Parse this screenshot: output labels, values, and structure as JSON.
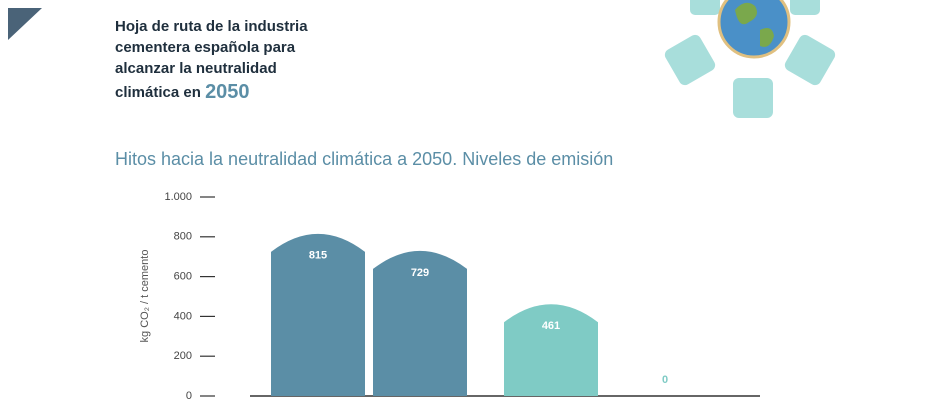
{
  "header": {
    "title_lines": [
      "Hoja de ruta de la industria",
      "cementera española para",
      "alcanzar la neutralidad",
      "climática en"
    ],
    "title_year": "2050"
  },
  "chart_data": {
    "type": "bar",
    "title": "Hitos hacia la neutralidad climática a 2050. Niveles de emisión",
    "ylabel": "kg CO₂ / t cemento",
    "categories": [
      null,
      null,
      null,
      null
    ],
    "values": [
      815,
      729,
      461,
      0
    ],
    "colors": [
      "#5b8ea6",
      "#5b8ea6",
      "#7fcbc5",
      "#7fcbc5"
    ],
    "ylim": [
      0,
      1000
    ],
    "yticks": [
      0,
      200,
      400,
      600,
      800,
      {
        "value": 1000,
        "label": "1.000"
      }
    ]
  }
}
